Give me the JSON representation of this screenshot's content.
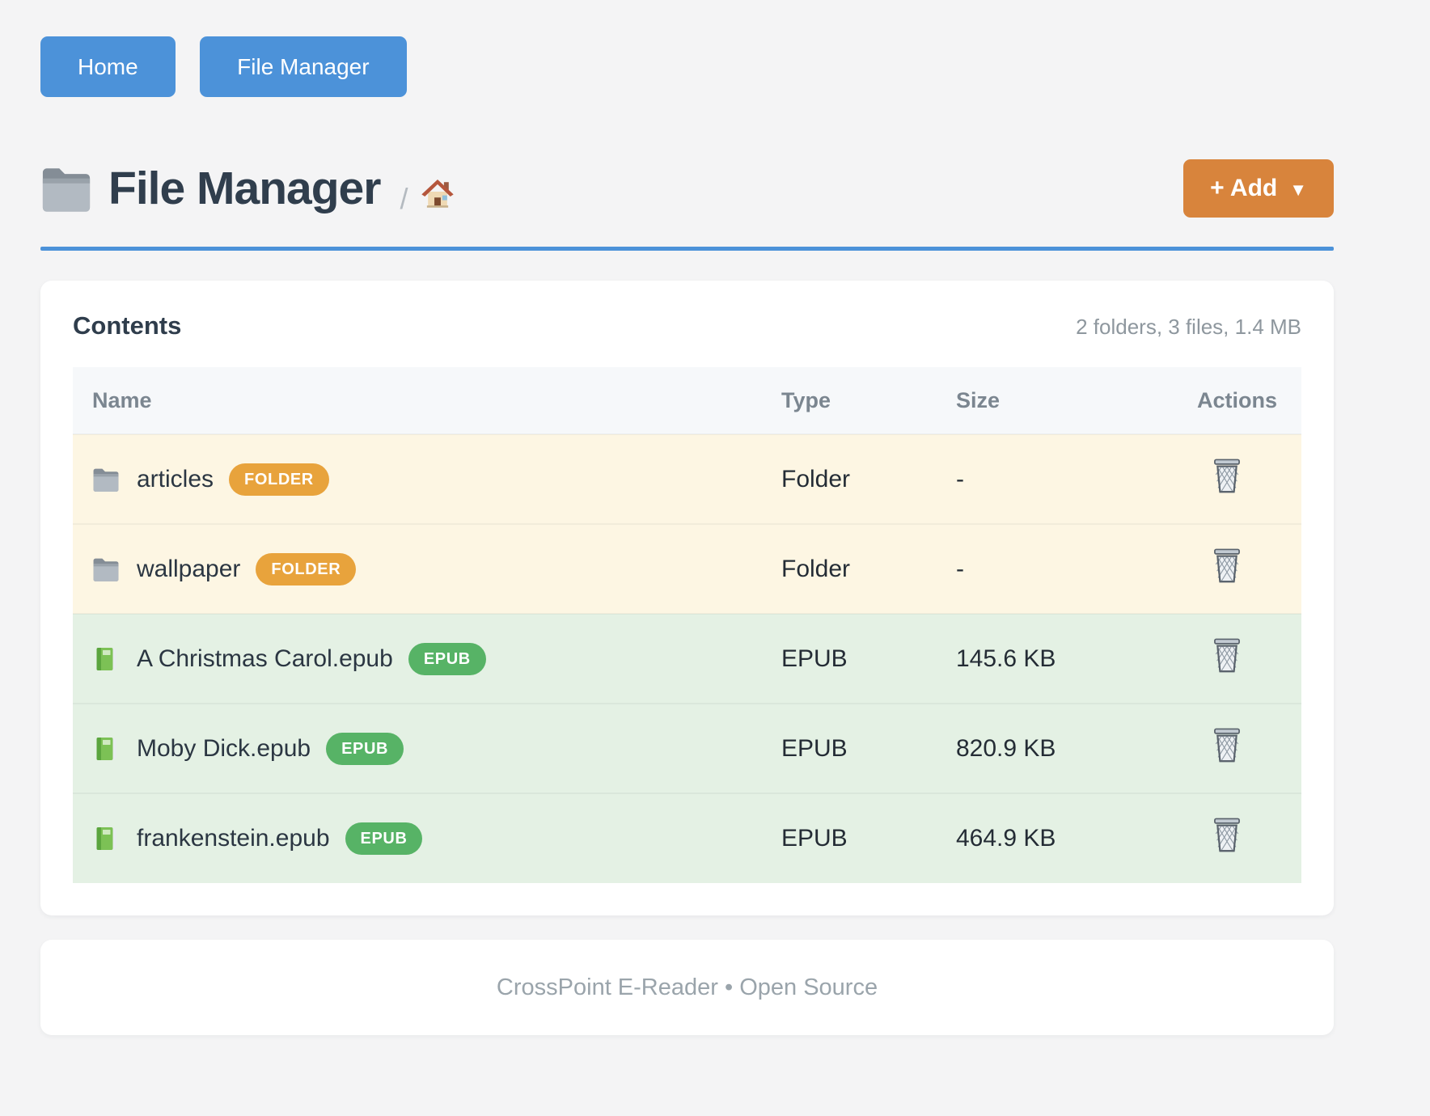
{
  "nav": {
    "items": [
      {
        "label": "Home"
      },
      {
        "label": "File Manager"
      }
    ]
  },
  "header": {
    "title": "File Manager",
    "title_icon": "folder-icon",
    "breadcrumb_separator": "/",
    "breadcrumb_home_icon": "house-icon",
    "add_button": {
      "label": "+ Add",
      "caret": "▼"
    }
  },
  "contents": {
    "title": "Contents",
    "summary": "2 folders, 3 files, 1.4 MB",
    "table": {
      "columns": [
        "Name",
        "Type",
        "Size",
        "Actions"
      ],
      "rows": [
        {
          "kind": "folder",
          "icon": "folder-icon",
          "name": "articles",
          "badge": "FOLDER",
          "type": "Folder",
          "size": "-",
          "action_icon": "trash-icon"
        },
        {
          "kind": "folder",
          "icon": "folder-icon",
          "name": "wallpaper",
          "badge": "FOLDER",
          "type": "Folder",
          "size": "-",
          "action_icon": "trash-icon"
        },
        {
          "kind": "epub",
          "icon": "book-icon",
          "name": "A Christmas Carol.epub",
          "badge": "EPUB",
          "type": "EPUB",
          "size": "145.6 KB",
          "action_icon": "trash-icon"
        },
        {
          "kind": "epub",
          "icon": "book-icon",
          "name": "Moby Dick.epub",
          "badge": "EPUB",
          "type": "EPUB",
          "size": "820.9 KB",
          "action_icon": "trash-icon"
        },
        {
          "kind": "epub",
          "icon": "book-icon",
          "name": "frankenstein.epub",
          "badge": "EPUB",
          "type": "EPUB",
          "size": "464.9 KB",
          "action_icon": "trash-icon"
        }
      ]
    }
  },
  "footer": {
    "text": "CrossPoint E-Reader • Open Source"
  },
  "colors": {
    "accent_blue": "#4c92d9",
    "accent_orange": "#d8843c",
    "badge_orange": "#e8a33c",
    "badge_green": "#57b366",
    "row_folder_bg": "#fdf6e3",
    "row_epub_bg": "#e4f1e4",
    "table_header_bg": "#f6f8fa",
    "page_bg": "#f4f4f5"
  }
}
